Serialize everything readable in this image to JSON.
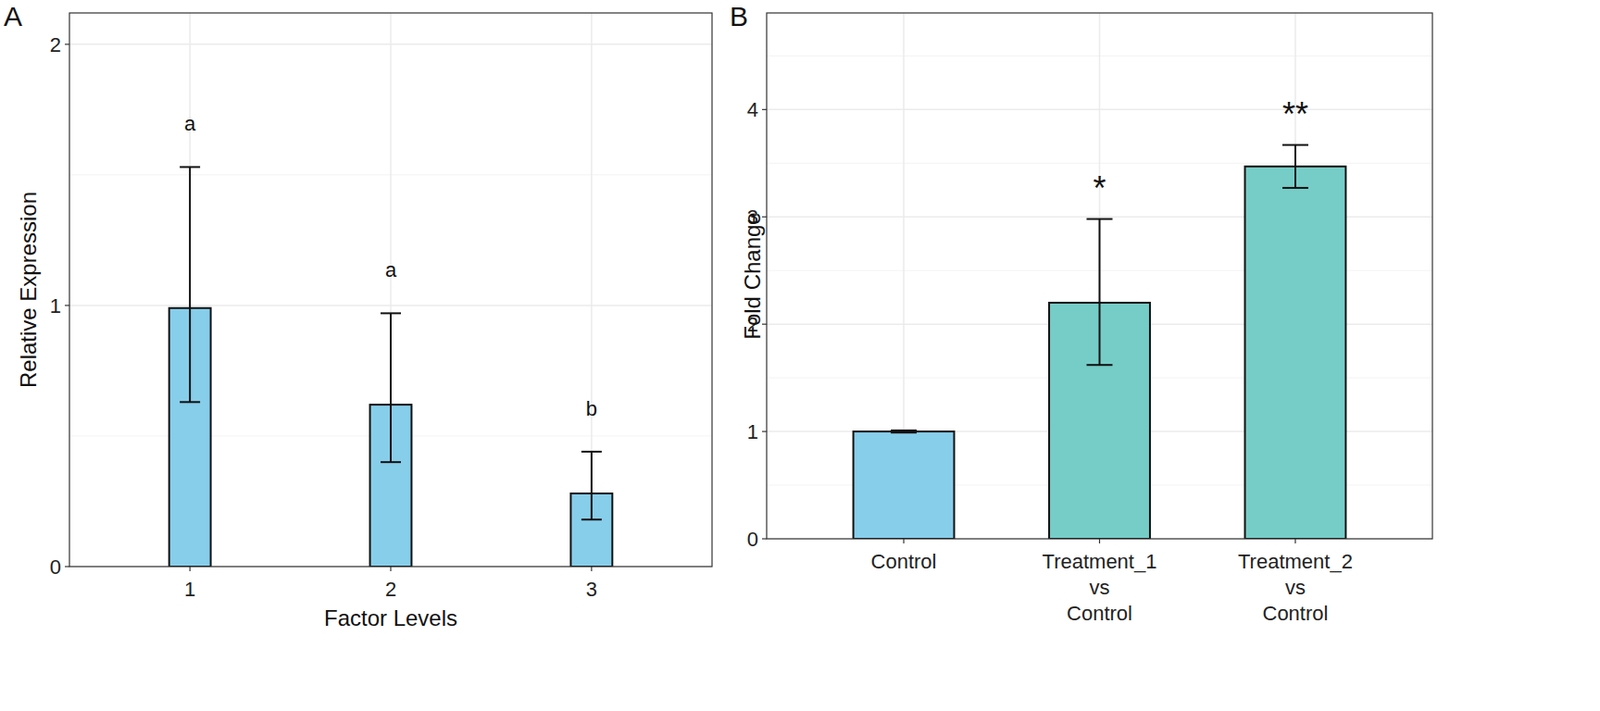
{
  "chart_data": [
    {
      "type": "bar",
      "title": "A",
      "x_label": "Factor Levels",
      "y_label": "Relative Expression",
      "categories": [
        "1",
        "2",
        "3"
      ],
      "values": [
        0.99,
        0.62,
        0.28
      ],
      "error_low": [
        0.63,
        0.4,
        0.18
      ],
      "error_high": [
        1.53,
        0.97,
        0.44
      ],
      "annotations": [
        "a",
        "a",
        "b"
      ],
      "color": "#87CEEB",
      "ylim": [
        0,
        2.12
      ],
      "yticks": [
        0,
        1,
        2
      ],
      "grid": true
    },
    {
      "type": "bar",
      "title": "B",
      "y_label": "Fold Change",
      "categories": [
        "Control",
        "Treatment_1\nvs\nControl",
        "Treatment_2\nvs\nControl"
      ],
      "values": [
        1.0,
        2.2,
        3.47
      ],
      "error_low": [
        0.99,
        1.62,
        3.27
      ],
      "error_high": [
        1.01,
        2.98,
        3.67
      ],
      "annotations": [
        null,
        "*",
        "**"
      ],
      "colors": [
        "#87CEEB",
        "#76CDC8",
        "#76CDC8"
      ],
      "ylim": [
        0,
        4.9
      ],
      "yticks": [
        0,
        1,
        2,
        3,
        4
      ],
      "grid": true
    }
  ]
}
